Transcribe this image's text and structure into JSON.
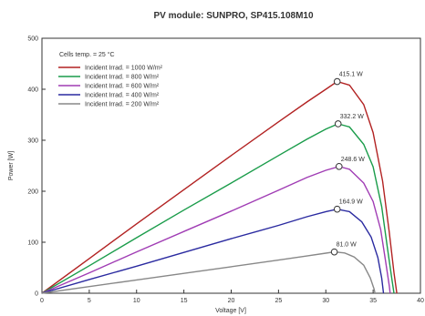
{
  "chart_data": {
    "type": "line",
    "title": "PV module:  SUNPRO,  SP415.108M10",
    "xlabel": "Voltage [V]",
    "ylabel": "Power [W]",
    "xlim": [
      0,
      40
    ],
    "ylim": [
      0,
      500
    ],
    "x_ticks": [
      0,
      5,
      10,
      15,
      20,
      25,
      30,
      35,
      40
    ],
    "y_ticks": [
      0,
      100,
      200,
      300,
      400,
      500
    ],
    "grid": false,
    "legend_position": "top-left",
    "legend_title": "Cells temp. = 25 °C",
    "series": [
      {
        "name": "Incident Irrad. = 1000 W/m²",
        "color": "#b22222",
        "peak_label": "415.1 W",
        "peak": [
          31.2,
          415.1
        ],
        "points": [
          [
            0,
            0
          ],
          [
            5,
            68
          ],
          [
            10,
            136
          ],
          [
            15,
            203
          ],
          [
            20,
            270
          ],
          [
            25,
            336
          ],
          [
            28,
            375
          ],
          [
            30,
            400
          ],
          [
            31.2,
            415.1
          ],
          [
            32.5,
            408
          ],
          [
            34,
            370
          ],
          [
            35,
            315
          ],
          [
            36,
            220
          ],
          [
            36.7,
            120
          ],
          [
            37.2,
            40
          ],
          [
            37.5,
            0
          ]
        ]
      },
      {
        "name": "Incident Irrad. = 800 W/m²",
        "color": "#1a9c4a",
        "peak_label": "332.2 W",
        "peak": [
          31.3,
          332.2
        ],
        "points": [
          [
            0,
            0
          ],
          [
            5,
            54
          ],
          [
            10,
            109
          ],
          [
            15,
            163
          ],
          [
            20,
            216
          ],
          [
            25,
            270
          ],
          [
            28,
            302
          ],
          [
            30,
            322
          ],
          [
            31.3,
            332.2
          ],
          [
            32.5,
            326
          ],
          [
            34,
            292
          ],
          [
            35,
            248
          ],
          [
            35.9,
            170
          ],
          [
            36.5,
            90
          ],
          [
            37,
            25
          ],
          [
            37.2,
            0
          ]
        ]
      },
      {
        "name": "Incident Irrad. = 600 W/m²",
        "color": "#a03cb4",
        "peak_label": "248.6 W",
        "peak": [
          31.4,
          248.6
        ],
        "points": [
          [
            0,
            0
          ],
          [
            5,
            40
          ],
          [
            10,
            81
          ],
          [
            15,
            121
          ],
          [
            20,
            161
          ],
          [
            25,
            202
          ],
          [
            28,
            227
          ],
          [
            30,
            241
          ],
          [
            31.4,
            248.6
          ],
          [
            32.5,
            243
          ],
          [
            34,
            216
          ],
          [
            35,
            180
          ],
          [
            35.8,
            125
          ],
          [
            36.3,
            65
          ],
          [
            36.7,
            15
          ],
          [
            36.8,
            0
          ]
        ]
      },
      {
        "name": "Incident Irrad. = 400 W/m²",
        "color": "#2a2aa0",
        "peak_label": "164.9 W",
        "peak": [
          31.2,
          164.9
        ],
        "points": [
          [
            0,
            0
          ],
          [
            5,
            27
          ],
          [
            10,
            53
          ],
          [
            15,
            80
          ],
          [
            20,
            107
          ],
          [
            25,
            133
          ],
          [
            28,
            150
          ],
          [
            30,
            160
          ],
          [
            31.2,
            164.9
          ],
          [
            32.5,
            160
          ],
          [
            33.8,
            140
          ],
          [
            34.8,
            110
          ],
          [
            35.5,
            70
          ],
          [
            35.9,
            30
          ],
          [
            36.1,
            0
          ]
        ]
      },
      {
        "name": "Incident Irrad. = 200 W/m²",
        "color": "#888888",
        "peak_label": "81.0 W",
        "peak": [
          30.9,
          81.0
        ],
        "points": [
          [
            0,
            0
          ],
          [
            5,
            13
          ],
          [
            10,
            26
          ],
          [
            15,
            39
          ],
          [
            20,
            52
          ],
          [
            25,
            65
          ],
          [
            28,
            73
          ],
          [
            30,
            78.5
          ],
          [
            30.9,
            81
          ],
          [
            32,
            79
          ],
          [
            33,
            71
          ],
          [
            34,
            55
          ],
          [
            34.7,
            30
          ],
          [
            35.1,
            8
          ],
          [
            35.2,
            0
          ]
        ]
      }
    ]
  }
}
